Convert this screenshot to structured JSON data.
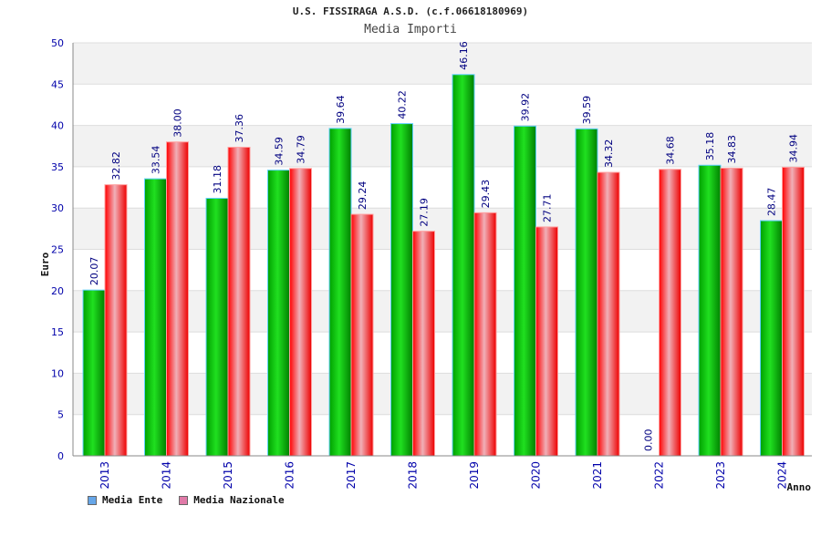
{
  "header": {
    "title": "U.S. FISSIRAGA A.S.D. (c.f.06618180969)",
    "subtitle": "Media Importi"
  },
  "chart_data": {
    "type": "bar",
    "categories": [
      "2013",
      "2014",
      "2015",
      "2016",
      "2017",
      "2018",
      "2019",
      "2020",
      "2021",
      "2022",
      "2023",
      "2024"
    ],
    "series": [
      {
        "name": "Media Ente",
        "values": [
          20.07,
          33.54,
          31.18,
          34.59,
          39.64,
          40.22,
          46.16,
          39.92,
          39.59,
          0.0,
          35.18,
          28.47
        ],
        "labels": [
          "20.07",
          "33.54",
          "31.18",
          "34.59",
          "39.64",
          "40.22",
          "46.16",
          "39.92",
          "39.59",
          "0.00",
          "35.18",
          "28.47"
        ],
        "color": "#00c000",
        "legend_color": "#66a6e8"
      },
      {
        "name": "Media Nazionale",
        "values": [
          32.82,
          38.0,
          37.36,
          34.79,
          29.24,
          27.19,
          29.43,
          27.71,
          34.32,
          34.68,
          34.83,
          34.94
        ],
        "labels": [
          "32.82",
          "38.00",
          "37.36",
          "34.79",
          "29.24",
          "27.19",
          "29.43",
          "27.71",
          "34.32",
          "34.68",
          "34.83",
          "34.94"
        ],
        "color": "#ff0000",
        "legend_color": "#e07aa8"
      }
    ],
    "xlabel": "Anno",
    "ylabel": "Euro",
    "ylim": [
      0,
      50
    ],
    "yticks": [
      0,
      5,
      10,
      15,
      20,
      25,
      30,
      35,
      40,
      45,
      50
    ],
    "grid": true,
    "legend_position": "bottom-left"
  }
}
